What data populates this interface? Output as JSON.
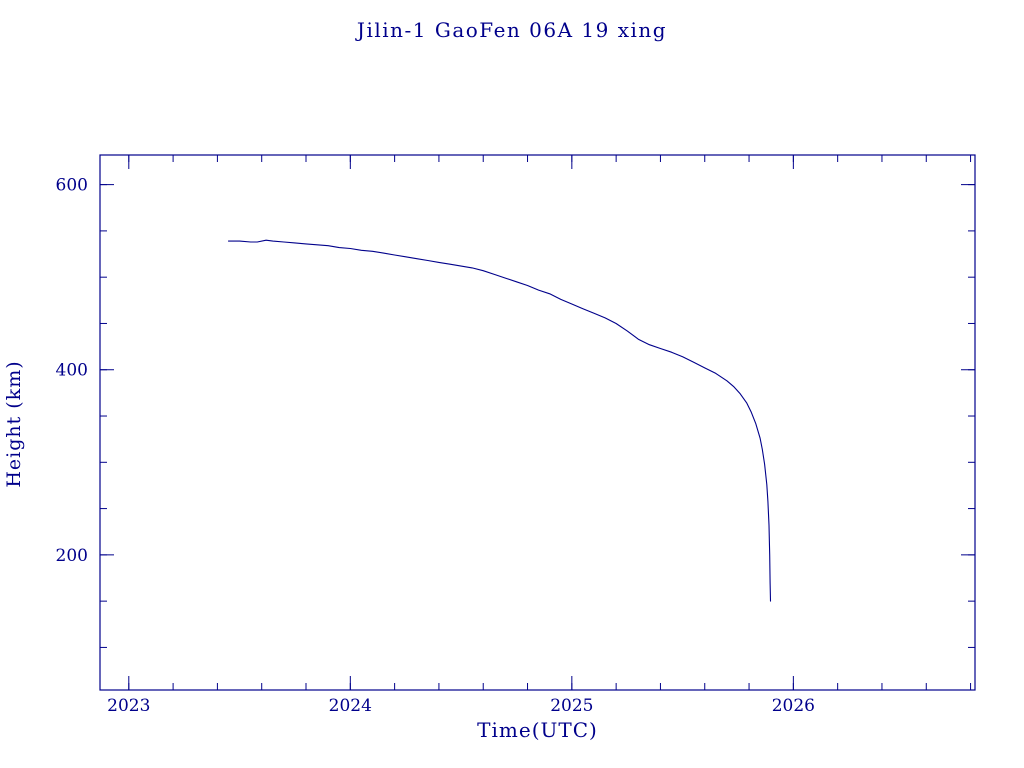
{
  "page": {
    "title": "Jilin-1 GaoFen 06A 19 xing"
  },
  "colors": {
    "accent": "#00008B",
    "background": "#ffffff"
  },
  "chart_data": {
    "type": "line",
    "title": "Jilin-1 GaoFen 06A 19 xing",
    "xlabel": "Time(UTC)",
    "ylabel": "Height (km)",
    "xlim": [
      2022.87,
      2026.82
    ],
    "ylim": [
      54,
      632
    ],
    "xticks": [
      2023,
      2024,
      2025,
      2026
    ],
    "yticks": [
      200,
      400,
      600
    ],
    "x_minor_step": 0.2,
    "y_minor_step": 50,
    "grid": false,
    "legend": "none",
    "line_color": "#00008B",
    "series": [
      {
        "name": "orbital-height",
        "points": [
          [
            2023.45,
            539
          ],
          [
            2023.5,
            539
          ],
          [
            2023.55,
            538
          ],
          [
            2023.58,
            538
          ],
          [
            2023.62,
            540
          ],
          [
            2023.65,
            539
          ],
          [
            2023.7,
            538
          ],
          [
            2023.75,
            537
          ],
          [
            2023.8,
            536
          ],
          [
            2023.85,
            535
          ],
          [
            2023.9,
            534
          ],
          [
            2023.95,
            532
          ],
          [
            2024.0,
            531
          ],
          [
            2024.05,
            529
          ],
          [
            2024.1,
            528
          ],
          [
            2024.15,
            526
          ],
          [
            2024.2,
            524
          ],
          [
            2024.25,
            522
          ],
          [
            2024.3,
            520
          ],
          [
            2024.35,
            518
          ],
          [
            2024.4,
            516
          ],
          [
            2024.45,
            514
          ],
          [
            2024.5,
            512
          ],
          [
            2024.55,
            510
          ],
          [
            2024.6,
            507
          ],
          [
            2024.65,
            503
          ],
          [
            2024.7,
            499
          ],
          [
            2024.75,
            495
          ],
          [
            2024.8,
            491
          ],
          [
            2024.85,
            486
          ],
          [
            2024.9,
            482
          ],
          [
            2024.95,
            476
          ],
          [
            2025.0,
            471
          ],
          [
            2025.05,
            466
          ],
          [
            2025.1,
            461
          ],
          [
            2025.15,
            456
          ],
          [
            2025.2,
            450
          ],
          [
            2025.25,
            442
          ],
          [
            2025.3,
            433
          ],
          [
            2025.35,
            427
          ],
          [
            2025.4,
            423
          ],
          [
            2025.45,
            419
          ],
          [
            2025.5,
            414
          ],
          [
            2025.55,
            408
          ],
          [
            2025.6,
            402
          ],
          [
            2025.65,
            396
          ],
          [
            2025.7,
            388
          ],
          [
            2025.73,
            382
          ],
          [
            2025.76,
            374
          ],
          [
            2025.79,
            364
          ],
          [
            2025.81,
            354
          ],
          [
            2025.83,
            342
          ],
          [
            2025.85,
            326
          ],
          [
            2025.86,
            314
          ],
          [
            2025.87,
            298
          ],
          [
            2025.88,
            276
          ],
          [
            2025.885,
            258
          ],
          [
            2025.89,
            232
          ],
          [
            2025.893,
            200
          ],
          [
            2025.895,
            170
          ],
          [
            2025.897,
            150
          ]
        ]
      }
    ]
  }
}
